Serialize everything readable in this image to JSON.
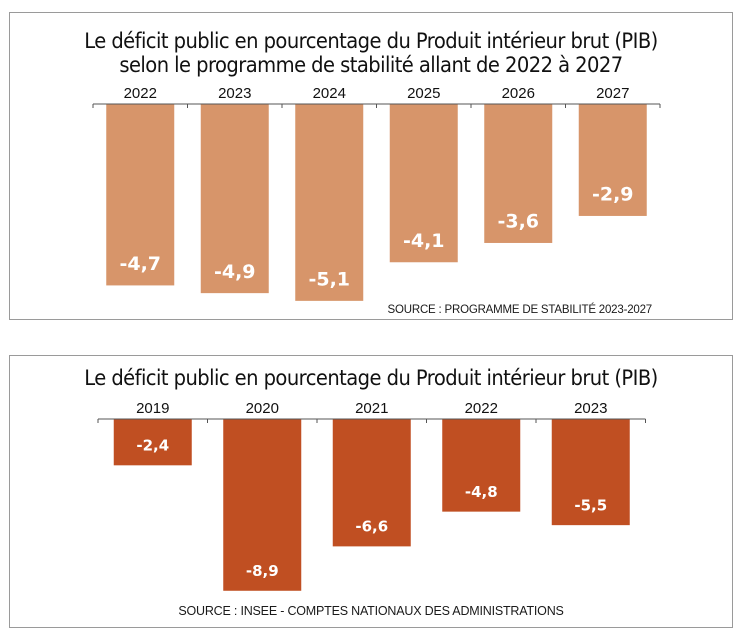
{
  "chart_data": [
    {
      "type": "bar",
      "title": "Le déficit public en pourcentage du Produit intérieur brut (PIB) selon le programme de stabilité allant de 2022 à 2027",
      "title_lines": [
        "Le déficit public en pourcentage du Produit intérieur brut (PIB)",
        "selon le programme de stabilité allant de 2022 à 2027"
      ],
      "categories": [
        "2022",
        "2023",
        "2024",
        "2025",
        "2026",
        "2027"
      ],
      "values": [
        -4.7,
        -4.9,
        -5.1,
        -4.1,
        -3.6,
        -2.9
      ],
      "labels": [
        "-4,7",
        "-4,9",
        "-5,1",
        "-4,1",
        "-3,6",
        "-2,9"
      ],
      "xlabel": "",
      "ylabel": "",
      "ylim": [
        -5.1,
        0
      ],
      "axis_position": "top",
      "grid": false,
      "bar_color": "#d7956a",
      "label_color": "#ffffff",
      "source": "SOURCE : PROGRAMME DE STABILITÉ 2023-2027"
    },
    {
      "type": "bar",
      "title": "Le déficit public en pourcentage du Produit intérieur brut (PIB)",
      "title_lines": [
        "Le déficit public en pourcentage du Produit intérieur brut (PIB)"
      ],
      "categories": [
        "2019",
        "2020",
        "2021",
        "2022",
        "2023"
      ],
      "values": [
        -2.4,
        -8.9,
        -6.6,
        -4.8,
        -5.5
      ],
      "labels": [
        "-2,4",
        "-8,9",
        "-6,6",
        "-4,8",
        "-5,5"
      ],
      "xlabel": "",
      "ylabel": "",
      "ylim": [
        -8.9,
        0
      ],
      "axis_position": "top",
      "grid": false,
      "bar_color": "#c04f22",
      "label_color": "#ffffff",
      "source": "SOURCE : INSEE - COMPTES NATIONAUX DES ADMINISTRATIONS"
    }
  ]
}
